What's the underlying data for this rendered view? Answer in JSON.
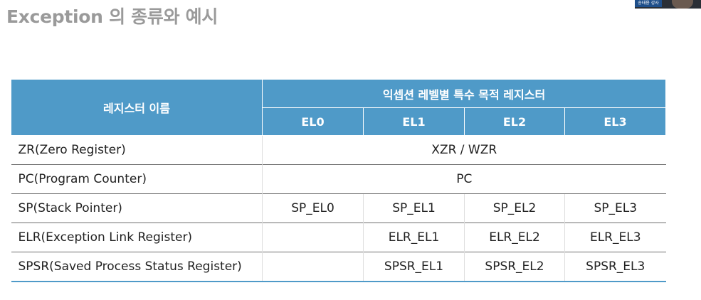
{
  "slide": {
    "title": "Exception 의 종류와 예시"
  },
  "webcam": {
    "badge": "송태용 강사"
  },
  "table": {
    "name_header": "레지스터 이름",
    "group_header": "익셉션 레벨별 특수 목적 레지스터",
    "levels": [
      "EL0",
      "EL1",
      "EL2",
      "EL3"
    ],
    "rows": [
      {
        "name": "ZR(Zero Register)",
        "merged": "XZR / WZR"
      },
      {
        "name": "PC(Program Counter)",
        "merged": "PC"
      },
      {
        "name": "SP(Stack Pointer)",
        "cells": [
          "SP_EL0",
          "SP_EL1",
          "SP_EL2",
          "SP_EL3"
        ]
      },
      {
        "name": "ELR(Exception Link Register)",
        "cells": [
          "",
          "ELR_EL1",
          "ELR_EL2",
          "ELR_EL3"
        ]
      },
      {
        "name": "SPSR(Saved Process Status Register)",
        "cells": [
          "",
          "SPSR_EL1",
          "SPSR_EL2",
          "SPSR_EL3"
        ]
      }
    ]
  },
  "colors": {
    "header_bg": "#4f9ac8",
    "title_text": "#9a9a9a"
  }
}
